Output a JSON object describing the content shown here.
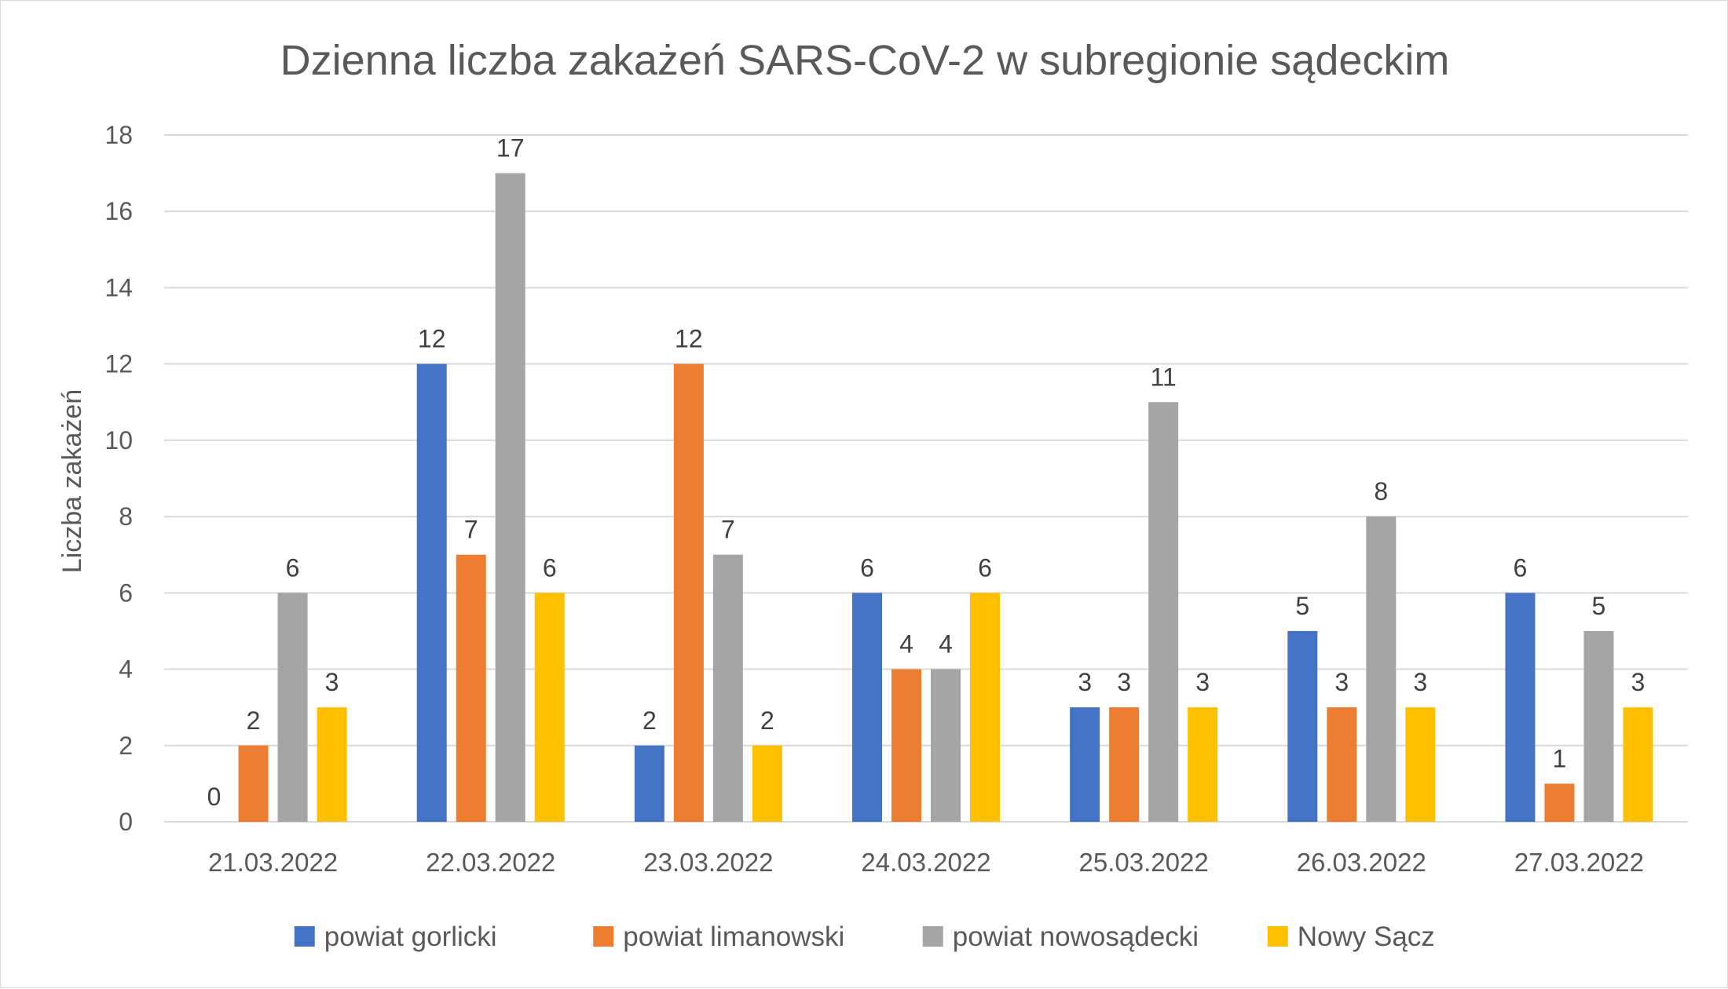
{
  "chart_data": {
    "type": "bar",
    "title": "Dzienna liczba zakażeń SARS-CoV-2 w subregionie sądeckim",
    "xlabel": "",
    "ylabel": "Liczba zakażeń",
    "ylim": [
      0,
      18
    ],
    "yticks": [
      0,
      2,
      4,
      6,
      8,
      10,
      12,
      14,
      16,
      18
    ],
    "grid": true,
    "legend_position": "bottom",
    "data_labels": true,
    "categories": [
      "21.03.2022",
      "22.03.2022",
      "23.03.2022",
      "24.03.2022",
      "25.03.2022",
      "26.03.2022",
      "27.03.2022"
    ],
    "series": [
      {
        "name": "powiat gorlicki",
        "color": "#4472c4",
        "values": [
          0,
          12,
          2,
          6,
          3,
          5,
          6
        ]
      },
      {
        "name": "powiat limanowski",
        "color": "#ed7d31",
        "values": [
          2,
          7,
          12,
          4,
          3,
          3,
          1
        ]
      },
      {
        "name": "powiat nowosądecki",
        "color": "#a5a5a5",
        "values": [
          6,
          17,
          7,
          4,
          11,
          8,
          5
        ]
      },
      {
        "name": "Nowy Sącz",
        "color": "#ffc000",
        "values": [
          3,
          6,
          2,
          6,
          3,
          3,
          3
        ]
      }
    ]
  }
}
